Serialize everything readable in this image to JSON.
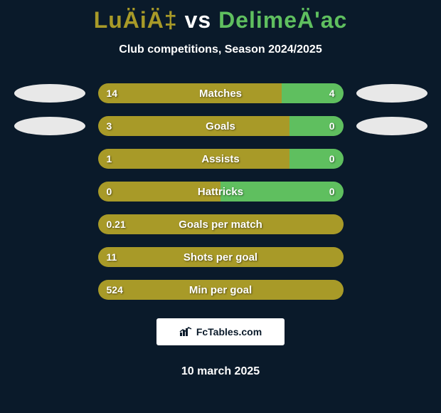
{
  "title": {
    "left": "LuÄiÄ‡",
    "vs": "vs",
    "right": "DelimeÄ'ac"
  },
  "subtitle": "Club competitions, Season 2024/2025",
  "colors": {
    "left": "#a89a28",
    "right": "#5fbf5f",
    "bg": "#0a1a2a",
    "ellipse": "#e8e8e8"
  },
  "rows": [
    {
      "label": "Matches",
      "left": "14",
      "right": "4",
      "left_pct": 75,
      "right_pct": 25,
      "show_ellipses": true
    },
    {
      "label": "Goals",
      "left": "3",
      "right": "0",
      "left_pct": 78,
      "right_pct": 22,
      "show_ellipses": true
    },
    {
      "label": "Assists",
      "left": "1",
      "right": "0",
      "left_pct": 78,
      "right_pct": 22,
      "show_ellipses": false
    },
    {
      "label": "Hattricks",
      "left": "0",
      "right": "0",
      "left_pct": 50,
      "right_pct": 50,
      "show_ellipses": false
    },
    {
      "label": "Goals per match",
      "left": "0.21",
      "right": "",
      "left_pct": 100,
      "right_pct": 0,
      "show_ellipses": false
    },
    {
      "label": "Shots per goal",
      "left": "11",
      "right": "",
      "left_pct": 100,
      "right_pct": 0,
      "show_ellipses": false
    },
    {
      "label": "Min per goal",
      "left": "524",
      "right": "",
      "left_pct": 100,
      "right_pct": 0,
      "show_ellipses": false
    }
  ],
  "watermark": "FcTables.com",
  "date": "10 march 2025"
}
